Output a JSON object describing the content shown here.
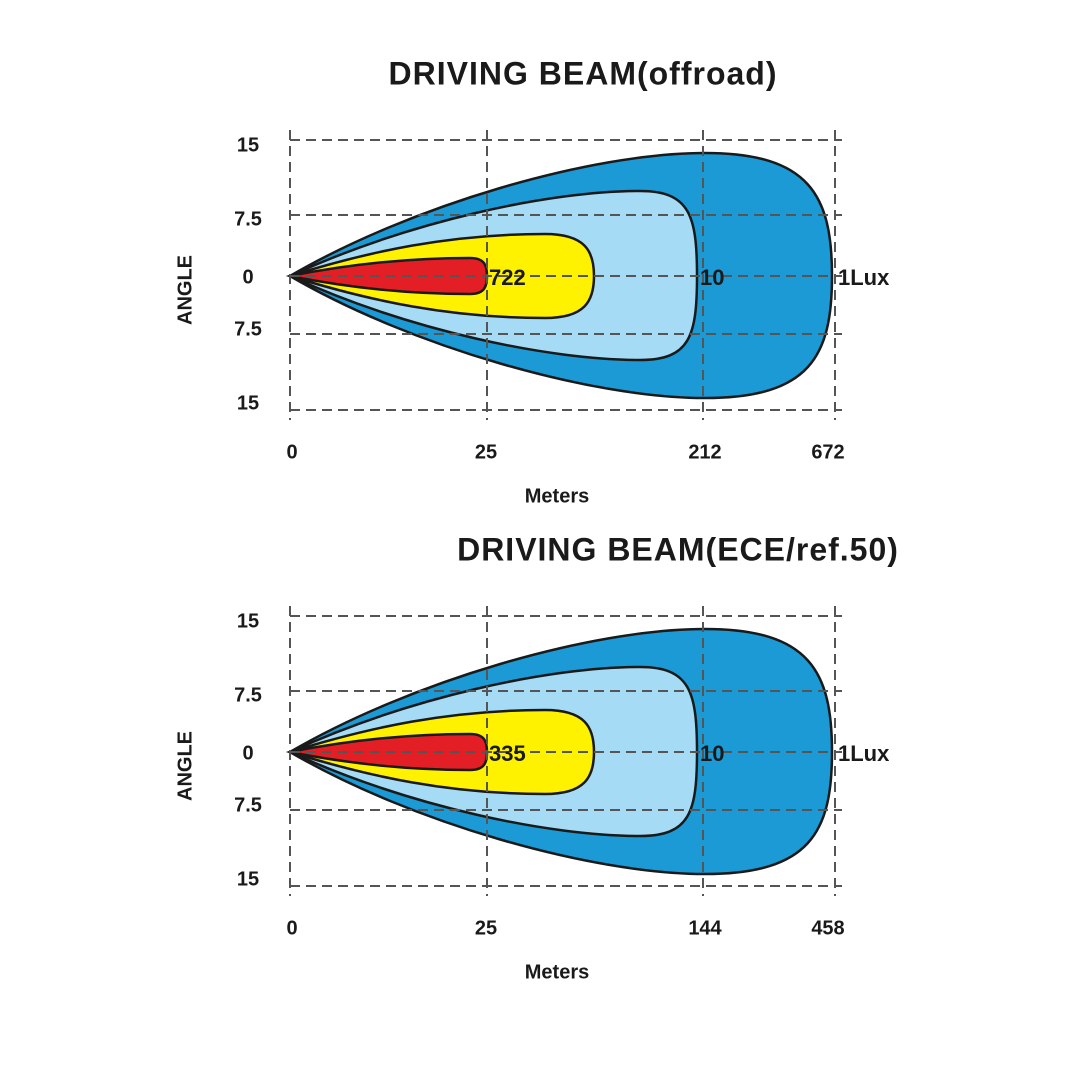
{
  "diagrams": [
    {
      "title": "DRIVING  BEAM(offroad)",
      "y_axis_label": "ANGLE",
      "y_labels": [
        "15",
        "7.5",
        "0",
        "7.5",
        "15"
      ],
      "x_labels": [
        "0",
        "25",
        "212",
        "672"
      ],
      "x_axis_label": "Meters",
      "zone_labels": [
        "722",
        "10",
        "1Lux"
      ]
    },
    {
      "title": "DRIVING  BEAM(ECE/ref.50)",
      "y_axis_label": "ANGLE",
      "y_labels": [
        "15",
        "7.5",
        "0",
        "7.5",
        "15"
      ],
      "x_labels": [
        "0",
        "25",
        "144",
        "458"
      ],
      "x_axis_label": "Meters",
      "zone_labels": [
        "335",
        "10",
        "1Lux"
      ]
    }
  ]
}
